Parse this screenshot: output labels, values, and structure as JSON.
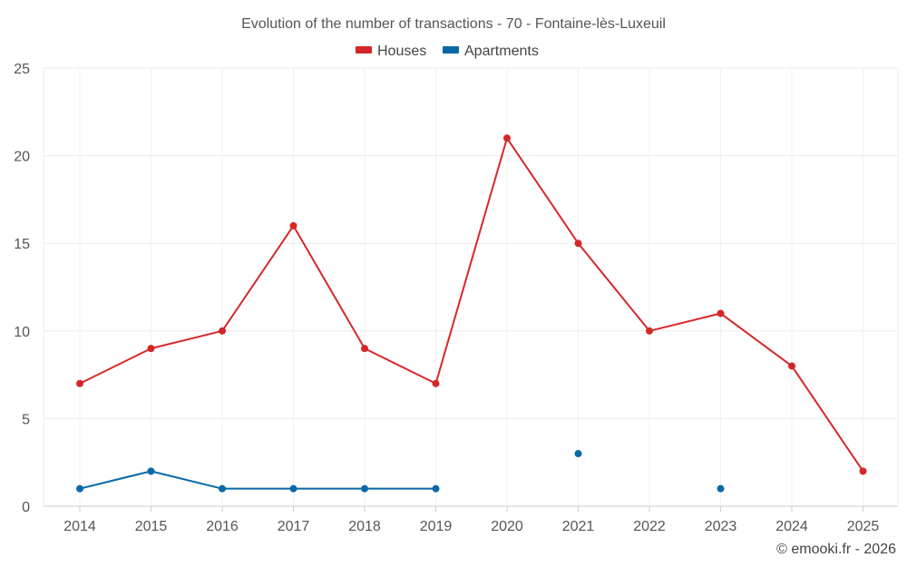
{
  "chart_data": {
    "type": "line",
    "title": "Evolution of the number of transactions - 70 - Fontaine-lès-Luxeuil",
    "xlabel": "",
    "ylabel": "",
    "categories": [
      "2014",
      "2015",
      "2016",
      "2017",
      "2018",
      "2019",
      "2020",
      "2021",
      "2022",
      "2023",
      "2024",
      "2025"
    ],
    "ylim": [
      0,
      25
    ],
    "yticks": [
      0,
      5,
      10,
      15,
      20,
      25
    ],
    "grid": true,
    "legend_position": "top-center",
    "series": [
      {
        "name": "Houses",
        "color": "#d62728",
        "values": [
          7,
          9,
          10,
          16,
          9,
          7,
          21,
          15,
          10,
          11,
          8,
          2
        ]
      },
      {
        "name": "Apartments",
        "color": "#0868a8",
        "values": [
          1,
          2,
          1,
          1,
          1,
          1,
          null,
          3,
          null,
          1,
          null,
          null
        ]
      }
    ],
    "credit": "© emooki.fr - 2026"
  }
}
